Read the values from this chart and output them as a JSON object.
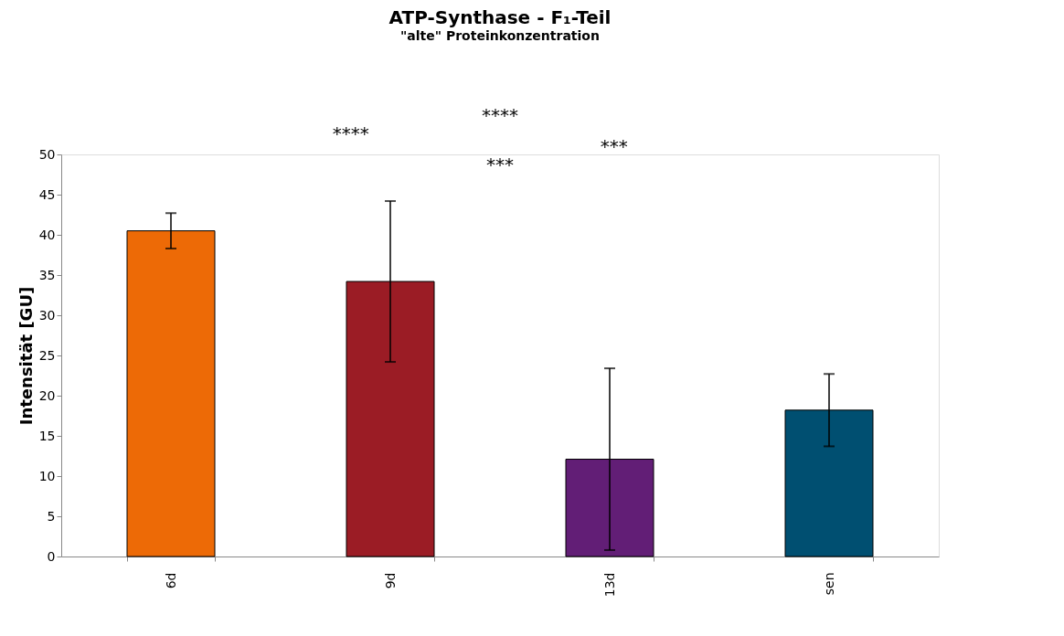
{
  "chart_data": {
    "type": "bar",
    "title": "ATP-Synthase - F₁-Teil",
    "subtitle": "\"alte\" Proteinkonzentration",
    "ylabel": "Intensität [GU]",
    "categories": [
      "6d",
      "9d",
      "13d",
      "sen"
    ],
    "values": [
      40.5,
      34.2,
      12.1,
      18.2
    ],
    "errors": [
      2.2,
      10.0,
      11.3,
      4.5
    ],
    "colors": [
      "#ed6a06",
      "#9b1c25",
      "#621e76",
      "#004f71"
    ],
    "ylim": [
      0,
      50
    ],
    "yticks": [
      0,
      5,
      10,
      15,
      20,
      25,
      30,
      35,
      40,
      45,
      50
    ],
    "annotations": [
      "****",
      "****",
      "***",
      "***"
    ],
    "grid": false
  }
}
